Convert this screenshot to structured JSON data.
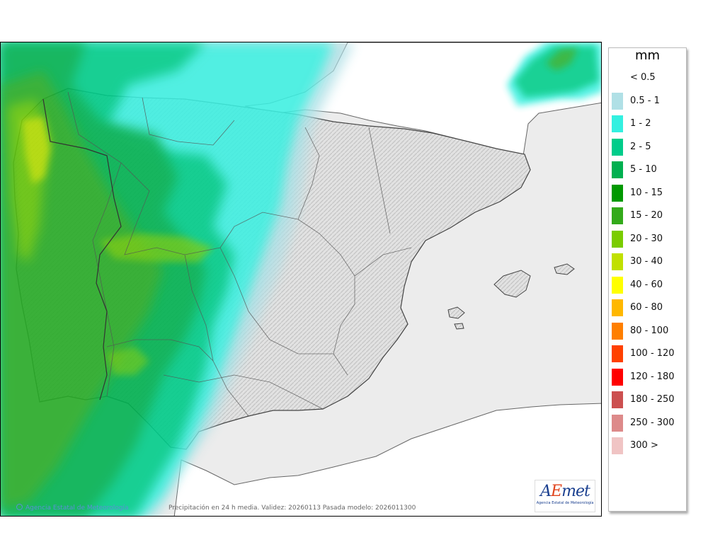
{
  "map": {
    "credit": "Agencia Estatal de Meteorología",
    "caption": "Precipitación en 24 h media. Validez: 20260113 Pasada modelo: 2026011300",
    "logo": {
      "mark_a": "A",
      "mark_e": "E",
      "mark_rest": "met",
      "subtitle": "Agencia Estatal de Meteorología"
    },
    "colors": {
      "sea": "#ececec",
      "land": "#ffffff",
      "relief": "#d3d3d3",
      "border": "#555555"
    }
  },
  "legend": {
    "unit": "mm",
    "bins": [
      {
        "label": "< 0.5",
        "color": "#ffffff"
      },
      {
        "label": "0.5 - 1",
        "color": "#b0e0e6"
      },
      {
        "label": "1 - 2",
        "color": "#33f0e0"
      },
      {
        "label": "2 - 5",
        "color": "#00cc8a"
      },
      {
        "label": "5 - 10",
        "color": "#00b050"
      },
      {
        "label": "10 - 15",
        "color": "#009900"
      },
      {
        "label": "15 - 20",
        "color": "#33aa1a"
      },
      {
        "label": "20 - 30",
        "color": "#7acc00"
      },
      {
        "label": "30 - 40",
        "color": "#c0e000"
      },
      {
        "label": "40 - 60",
        "color": "#ffff00"
      },
      {
        "label": "60 - 80",
        "color": "#ffb800"
      },
      {
        "label": "80 - 100",
        "color": "#ff7f00"
      },
      {
        "label": "100 - 120",
        "color": "#ff4000"
      },
      {
        "label": "120 - 180",
        "color": "#ff0000"
      },
      {
        "label": "180 - 250",
        "color": "#cc5050"
      },
      {
        "label": "250 - 300",
        "color": "#dd8a8a"
      },
      {
        "label": "300 >",
        "color": "#f0c4c4"
      }
    ]
  }
}
